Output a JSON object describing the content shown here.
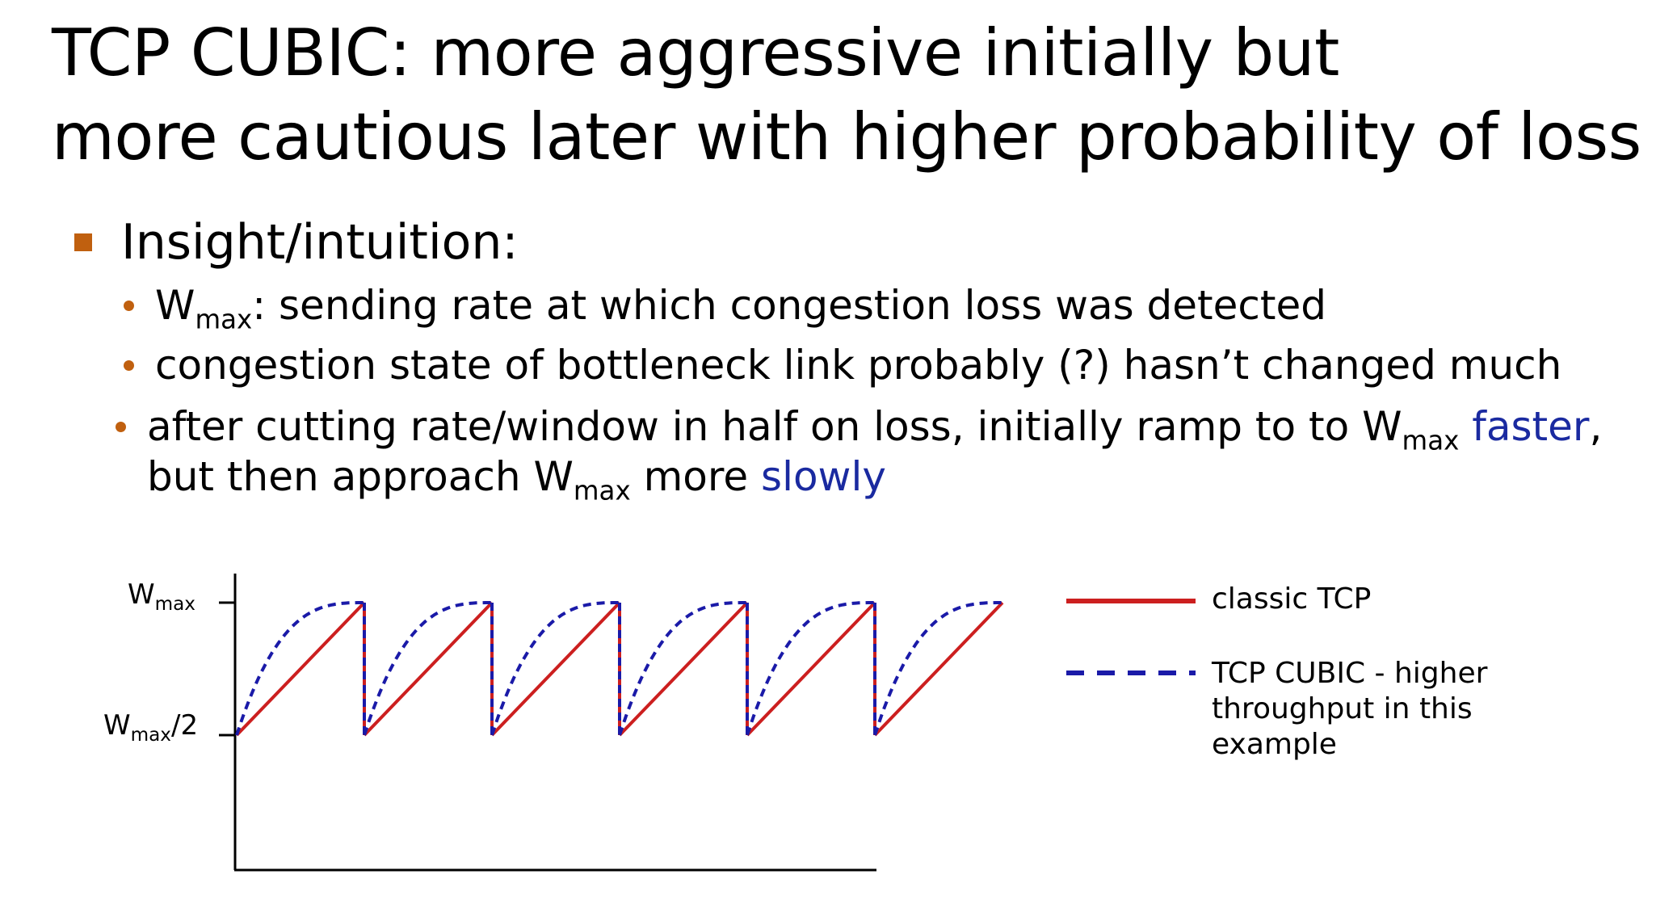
{
  "title": {
    "line1": "TCP CUBIC: more aggressive initially but",
    "line2": "more cautious later with higher probability of loss"
  },
  "heading": "Insight/intuition:",
  "bullets": {
    "b1": {
      "var": "W",
      "sub": "max",
      "text": ": sending rate at which congestion loss was detected"
    },
    "b2": {
      "text": "congestion state of bottleneck link probably (?) hasn’t changed much"
    },
    "b3": {
      "pre": "after cutting rate/window in half on loss, initially ramp to to W",
      "sub1": "max",
      "faster": " faster",
      "comma": ",",
      "line2_pre": "but then approach W",
      "sub2": "max",
      "line2_mid": " more ",
      "slowly": "slowly"
    }
  },
  "chart": {
    "ytick_high": {
      "var": "W",
      "sub": "max"
    },
    "ytick_low": {
      "var": "W",
      "sub": "max",
      "suffix": "/2"
    },
    "legend": {
      "classic": "classic TCP",
      "cubic": "TCP CUBIC - higher throughput in this example"
    }
  },
  "colors": {
    "classic": "#cc1f1f",
    "cubic": "#1a1aa8",
    "accent": "#c0600f"
  },
  "chart_data": {
    "type": "line",
    "y_ticks": [
      "Wmax/2",
      "Wmax"
    ],
    "series": [
      {
        "name": "classic TCP",
        "pattern": "sawtooth-linear",
        "low": 0.5,
        "high": 1.0,
        "cycles": 6
      },
      {
        "name": "TCP CUBIC - higher throughput in this example",
        "pattern": "sawtooth-concave",
        "low": 0.5,
        "high": 1.0,
        "cycles": 6
      }
    ]
  }
}
